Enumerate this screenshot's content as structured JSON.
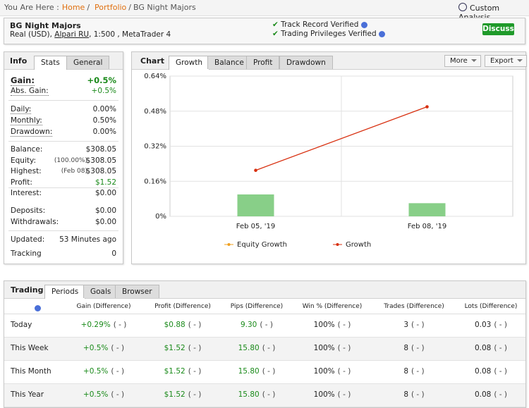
{
  "breadcrumb": {
    "prefix": "You Are Here :",
    "separator": "/",
    "items": [
      "Home",
      "Portfolio",
      "BG Night Majors"
    ]
  },
  "custom_analysis": "Custom Analysis",
  "header": {
    "title": "BG Night Majors",
    "account": "Real (USD),",
    "broker": "Alpari RU",
    "details": ", 1:500 , MetaTrader 4",
    "verified": [
      "Track Record Verified",
      "Trading Privileges Verified"
    ],
    "button": "Discuss"
  },
  "info": {
    "tabs": [
      "Info",
      "Stats",
      "General"
    ],
    "rows": [
      {
        "label": "Gain:",
        "value": "+0.5%"
      },
      {
        "label": "Abs. Gain:",
        "value": "+0.5%"
      },
      {
        "label": "Daily:",
        "value": "0.00%"
      },
      {
        "label": "Monthly:",
        "value": "0.50%"
      },
      {
        "label": "Drawdown:",
        "value": "0.00%"
      },
      {
        "label": "Balance:",
        "value": "$308.05"
      },
      {
        "label": "Equity:",
        "note": "(100.00%)",
        "value": "$308.05"
      },
      {
        "label": "Highest:",
        "note": "(Feb 08)",
        "value": "$308.05"
      },
      {
        "label": "Profit:",
        "value": "$1.52"
      },
      {
        "label": "Interest:",
        "value": "$0.00"
      },
      {
        "label": "Deposits:",
        "value": "$0.00"
      },
      {
        "label": "Withdrawals:",
        "value": "$0.00"
      },
      {
        "label": "Updated:",
        "value": "53 Minutes ago"
      },
      {
        "label": "Tracking",
        "value": "0"
      }
    ]
  },
  "chart_panel": {
    "tabs": [
      "Chart",
      "Growth",
      "Balance",
      "Profit",
      "Drawdown"
    ],
    "buttons": [
      "More",
      "Export"
    ]
  },
  "chart_data": {
    "type": "line",
    "categories": [
      "Feb 05, '19",
      "Feb 08, '19"
    ],
    "series": [
      {
        "name": "Equity Growth",
        "color": "#f0a020",
        "values": [
          null,
          null
        ]
      },
      {
        "name": "Growth",
        "color": "#d83010",
        "values": [
          0.21,
          0.5
        ]
      }
    ],
    "bars": {
      "color": "#88cf88",
      "values": [
        0.1,
        0.06
      ]
    },
    "ylim": [
      0,
      0.64
    ],
    "yticks": [
      {
        "value": 0,
        "label": "0%"
      },
      {
        "value": 0.16,
        "label": "0.16%"
      },
      {
        "value": 0.32,
        "label": "0.32%"
      },
      {
        "value": 0.48,
        "label": "0.48%"
      },
      {
        "value": 0.64,
        "label": "0.64%"
      }
    ],
    "grid": true
  },
  "trading": {
    "tabs": [
      "Trading",
      "Periods",
      "Goals",
      "Browser"
    ],
    "columns": [
      "Gain (Difference)",
      "Profit (Difference)",
      "Pips (Difference)",
      "Win % (Difference)",
      "Trades (Difference)",
      "Lots (Difference)"
    ],
    "rows": [
      {
        "label": "Today",
        "cells": [
          {
            "value": "+0.29%",
            "diff": "( - )"
          },
          {
            "value": "$0.88",
            "diff": "( - )"
          },
          {
            "value": "9.30",
            "diff": "( - )"
          },
          {
            "value": "100%",
            "diff": "( - )"
          },
          {
            "value": "3",
            "diff": "( - )"
          },
          {
            "value": "0.03",
            "diff": "( - )"
          }
        ]
      },
      {
        "label": "This Week",
        "cells": [
          {
            "value": "+0.5%",
            "diff": "( - )"
          },
          {
            "value": "$1.52",
            "diff": "( - )"
          },
          {
            "value": "15.80",
            "diff": "( - )"
          },
          {
            "value": "100%",
            "diff": "( - )"
          },
          {
            "value": "8",
            "diff": "( - )"
          },
          {
            "value": "0.08",
            "diff": "( - )"
          }
        ]
      },
      {
        "label": "This Month",
        "cells": [
          {
            "value": "+0.5%",
            "diff": "( - )"
          },
          {
            "value": "$1.52",
            "diff": "( - )"
          },
          {
            "value": "15.80",
            "diff": "( - )"
          },
          {
            "value": "100%",
            "diff": "( - )"
          },
          {
            "value": "8",
            "diff": "( - )"
          },
          {
            "value": "0.08",
            "diff": "( - )"
          }
        ]
      },
      {
        "label": "This Year",
        "cells": [
          {
            "value": "+0.5%",
            "diff": "( - )"
          },
          {
            "value": "$1.52",
            "diff": "( - )"
          },
          {
            "value": "15.80",
            "diff": "( - )"
          },
          {
            "value": "100%",
            "diff": "( - )"
          },
          {
            "value": "8",
            "diff": "( - )"
          },
          {
            "value": "0.08",
            "diff": "( - )"
          }
        ]
      }
    ]
  }
}
